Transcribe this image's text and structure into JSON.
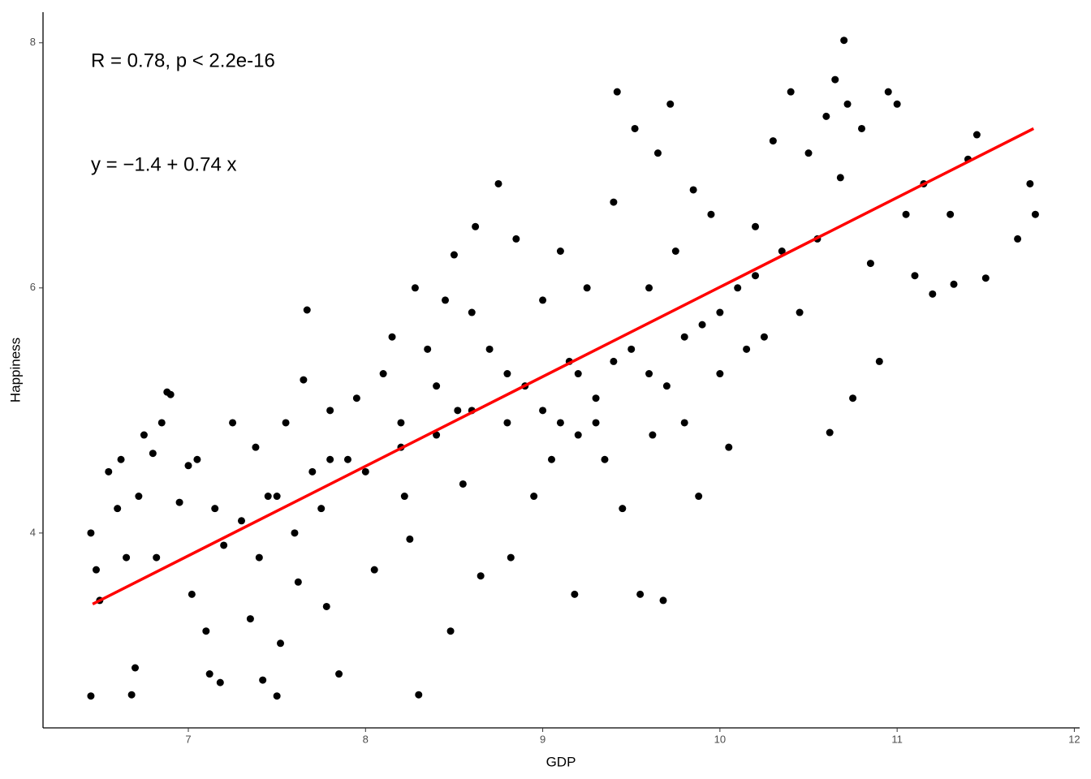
{
  "chart_data": {
    "type": "scatter",
    "x_label": "GDP",
    "y_label": "Happiness",
    "annotations": [
      "R = 0.78, p < 2.2e-16",
      "y = −1.4 + 0.74 x"
    ],
    "xlim": [
      6.18,
      12.03
    ],
    "ylim": [
      2.41,
      8.25
    ],
    "xticks": [
      7,
      8,
      9,
      10,
      11,
      12
    ],
    "yticks": [
      4,
      6,
      8
    ],
    "grid": false,
    "series": [
      {
        "name": "points",
        "color": "#000000",
        "x": [
          6.45,
          6.45,
          6.48,
          6.5,
          6.55,
          6.6,
          6.62,
          6.65,
          6.68,
          6.7,
          6.72,
          6.75,
          6.8,
          6.82,
          6.85,
          6.88,
          6.9,
          6.95,
          7.0,
          7.02,
          7.05,
          7.1,
          7.12,
          7.15,
          7.2,
          7.18,
          7.25,
          7.3,
          7.35,
          7.38,
          7.4,
          7.42,
          7.45,
          7.5,
          7.52,
          7.55,
          7.6,
          7.62,
          7.65,
          7.67,
          7.7,
          7.75,
          7.78,
          7.8,
          7.85,
          7.9,
          7.95,
          8.0,
          8.05,
          8.1,
          8.15,
          8.2,
          8.22,
          8.25,
          8.3,
          8.28,
          8.35,
          8.4,
          8.45,
          8.48,
          8.5,
          8.52,
          8.55,
          8.6,
          8.62,
          8.65,
          8.7,
          8.75,
          8.8,
          8.82,
          8.85,
          8.9,
          8.95,
          9.0,
          9.05,
          9.1,
          9.15,
          9.18,
          9.2,
          9.25,
          9.3,
          9.35,
          9.4,
          9.42,
          9.45,
          9.5,
          9.52,
          9.55,
          9.6,
          9.62,
          9.65,
          9.68,
          9.7,
          9.72,
          9.75,
          9.8,
          9.85,
          9.88,
          9.9,
          9.95,
          10.0,
          10.05,
          10.1,
          10.15,
          10.2,
          10.25,
          10.3,
          10.35,
          10.4,
          10.45,
          10.5,
          10.55,
          10.6,
          10.62,
          10.65,
          10.68,
          10.7,
          10.72,
          10.75,
          10.8,
          10.85,
          10.9,
          10.95,
          11.0,
          11.05,
          11.1,
          11.15,
          11.2,
          11.3,
          11.32,
          11.4,
          11.45,
          11.5,
          11.68,
          11.75,
          11.78,
          8.6,
          8.8,
          9.0,
          9.2,
          9.4,
          9.6,
          9.8,
          10.0,
          10.2,
          7.5,
          7.8,
          8.2,
          9.1,
          9.3,
          8.4
        ],
        "values": [
          4.0,
          2.67,
          3.7,
          3.45,
          4.5,
          4.2,
          4.6,
          3.8,
          2.68,
          2.9,
          4.3,
          4.8,
          4.65,
          3.8,
          4.9,
          5.15,
          5.13,
          4.25,
          4.55,
          3.5,
          4.6,
          3.2,
          2.85,
          4.2,
          3.9,
          2.78,
          4.9,
          4.1,
          3.3,
          4.7,
          3.8,
          2.8,
          4.3,
          2.67,
          3.1,
          4.9,
          4.0,
          3.6,
          5.25,
          5.82,
          4.5,
          4.2,
          3.4,
          5.0,
          2.85,
          4.6,
          5.1,
          4.5,
          3.7,
          5.3,
          5.6,
          4.9,
          4.3,
          3.95,
          2.68,
          6.0,
          5.5,
          4.8,
          5.9,
          3.2,
          6.27,
          5.0,
          4.4,
          5.8,
          6.5,
          3.65,
          5.5,
          6.85,
          4.9,
          3.8,
          6.4,
          5.2,
          4.3,
          5.9,
          4.6,
          6.3,
          5.4,
          3.5,
          4.8,
          6.0,
          5.1,
          4.6,
          6.7,
          7.6,
          4.2,
          5.5,
          7.3,
          3.5,
          6.0,
          4.8,
          7.1,
          3.45,
          5.2,
          7.5,
          6.3,
          4.9,
          6.8,
          4.3,
          5.7,
          6.6,
          5.3,
          4.7,
          6.0,
          5.5,
          6.5,
          5.6,
          7.2,
          6.3,
          7.6,
          5.8,
          7.1,
          6.4,
          7.4,
          4.82,
          7.7,
          6.9,
          8.02,
          7.5,
          5.1,
          7.3,
          6.2,
          5.4,
          7.6,
          7.5,
          6.6,
          6.1,
          6.85,
          5.95,
          6.6,
          6.03,
          7.05,
          7.25,
          6.08,
          6.4,
          6.85,
          6.6,
          5.0,
          5.3,
          5.0,
          5.3,
          5.4,
          5.3,
          5.6,
          5.8,
          6.1,
          4.3,
          4.6,
          4.7,
          4.9,
          4.9,
          5.2
        ]
      },
      {
        "name": "fit",
        "color": "#ff0000",
        "x": [
          6.46,
          11.77
        ],
        "values": [
          3.42,
          7.3
        ]
      }
    ]
  }
}
